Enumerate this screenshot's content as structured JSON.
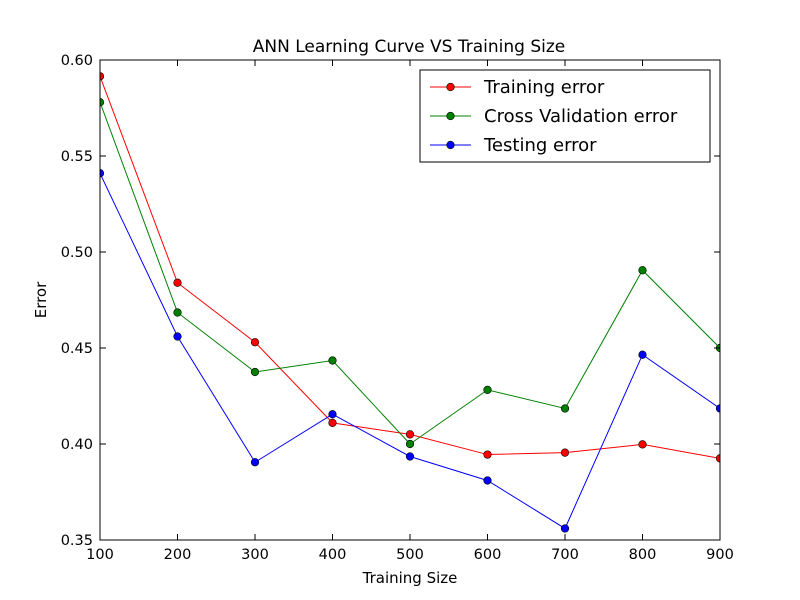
{
  "chart_data": {
    "type": "line",
    "title": "ANN Learning Curve VS Training Size",
    "xlabel": "Training Size",
    "ylabel": "Error",
    "xlim": [
      100,
      900
    ],
    "ylim": [
      0.35,
      0.6
    ],
    "x": [
      100,
      200,
      300,
      400,
      500,
      600,
      700,
      800,
      900
    ],
    "xticks": [
      100,
      200,
      300,
      400,
      500,
      600,
      700,
      800,
      900
    ],
    "xtick_labels": [
      "100",
      "200",
      "300",
      "400",
      "500",
      "600",
      "700",
      "800",
      "900"
    ],
    "yticks": [
      0.35,
      0.4,
      0.45,
      0.5,
      0.55,
      0.6
    ],
    "ytick_labels": [
      "0.35",
      "0.40",
      "0.45",
      "0.50",
      "0.55",
      "0.60"
    ],
    "grid": false,
    "legend_position": "top-right",
    "series": [
      {
        "name": "Training error",
        "color": "#ff0000",
        "values": [
          0.5915,
          0.484,
          0.453,
          0.411,
          0.405,
          0.3945,
          0.3955,
          0.3998,
          0.3925
        ]
      },
      {
        "name": "Cross Validation error",
        "color": "#008000",
        "values": [
          0.578,
          0.4685,
          0.4375,
          0.4435,
          0.4,
          0.4282,
          0.4185,
          0.4905,
          0.45
        ]
      },
      {
        "name": "Testing error",
        "color": "#0000ff",
        "values": [
          0.541,
          0.456,
          0.3905,
          0.4155,
          0.3935,
          0.381,
          0.356,
          0.4465,
          0.4185
        ]
      }
    ]
  }
}
